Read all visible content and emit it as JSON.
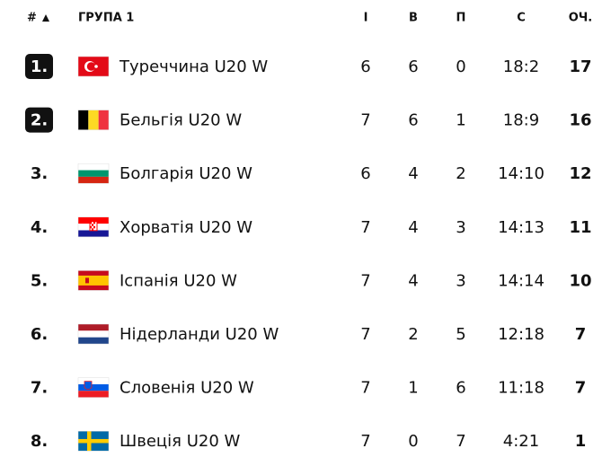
{
  "header": {
    "rank": "#",
    "group": "ГРУПА 1",
    "played": "І",
    "won": "В",
    "lost": "П",
    "score": "С",
    "points": "ОЧ."
  },
  "table": {
    "rows": [
      [
        "1.",
        "Туреччина U20 W",
        6,
        6,
        0,
        "18:2",
        17
      ],
      [
        "2.",
        "Бельгія U20 W",
        7,
        6,
        1,
        "18:9",
        16
      ],
      [
        "3.",
        "Болгарія U20 W",
        6,
        4,
        2,
        "14:10",
        12
      ],
      [
        "4.",
        "Хорватія U20 W",
        7,
        4,
        3,
        "14:13",
        11
      ],
      [
        "5.",
        "Іспанія U20 W",
        7,
        4,
        3,
        "14:14",
        10
      ],
      [
        "6.",
        "Нідерланди U20 W",
        7,
        2,
        5,
        "12:18",
        7
      ],
      [
        "7.",
        "Словенія U20 W",
        7,
        1,
        6,
        "11:18",
        7
      ],
      [
        "8.",
        "Швеція U20 W",
        7,
        0,
        7,
        "4:21",
        1
      ]
    ]
  }
}
